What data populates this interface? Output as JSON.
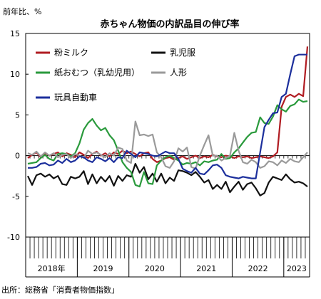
{
  "chart_data": {
    "type": "line",
    "title": "赤ちゃん物価の内訳品目の伸び率",
    "unit_label": "前年比、%",
    "source": "出所：総務省「消費者物価指数」",
    "ylim": [
      -10,
      15
    ],
    "yticks": [
      15,
      10,
      5,
      0,
      -5,
      -10
    ],
    "x_start": "2018-01",
    "x_end": "2023-06",
    "year_labels": [
      "2018年",
      "2019",
      "2020",
      "2021",
      "2022",
      "2023"
    ],
    "grid": false,
    "legend_placement": "top-left",
    "series": [
      {
        "name": "粉ミルク",
        "color": "#b01c22",
        "values": [
          -0.3,
          0.1,
          0.4,
          -0.2,
          0.3,
          0.0,
          0.2,
          0.4,
          -0.1,
          0.3,
          0.1,
          -0.2,
          0.4,
          0.1,
          -0.3,
          0.2,
          0.5,
          0.0,
          0.3,
          -0.1,
          0.4,
          0.2,
          0.6,
          0.3,
          0.5,
          0.2,
          -0.1,
          0.3,
          0.4,
          -0.4,
          -0.8,
          -0.6,
          -0.3,
          -0.2,
          -0.5,
          -0.3,
          -0.1,
          -0.4,
          -0.2,
          0.0,
          -0.3,
          -0.1,
          -0.2,
          0.1,
          -0.1,
          -0.2,
          0.0,
          -0.1,
          -0.3,
          -0.1,
          -0.2,
          -0.1,
          -0.3,
          -0.2,
          -0.1,
          -0.2,
          -0.3,
          -0.1,
          0.4,
          6.0,
          7.2,
          7.5,
          7.2,
          7.6,
          7.3,
          13.4
        ]
      },
      {
        "name": "乳児服",
        "color": "#111111",
        "values": [
          -2.5,
          -3.6,
          -2.4,
          -2.2,
          -2.6,
          -2.3,
          -2.8,
          -2.5,
          -3.5,
          -3.6,
          -2.6,
          -2.8,
          -2.6,
          -1.9,
          -3.5,
          -2.3,
          -3.4,
          -2.6,
          -3.2,
          -2.5,
          -3.7,
          -2.5,
          -3.1,
          -2.4,
          -2.6,
          -1.0,
          -2.1,
          -1.4,
          -2.9,
          -2.2,
          -3.2,
          -2.2,
          -3.4,
          -2.7,
          -3.1,
          -1.8,
          -1.9,
          -2.1,
          -2.4,
          -2.0,
          -2.6,
          -3.3,
          -3.0,
          -4.1,
          -3.6,
          -4.1,
          -3.2,
          -4.5,
          -3.8,
          -3.2,
          -4.2,
          -3.5,
          -3.3,
          -4.0,
          -4.9,
          -4.6,
          -3.3,
          -2.6,
          -2.8,
          -3.0,
          -2.3,
          -2.9,
          -3.3,
          -3.2,
          -3.4,
          -3.8
        ]
      },
      {
        "name": "紙おむつ（乳幼児用）",
        "color": "#2a9a3c",
        "values": [
          -1.0,
          -0.9,
          -0.8,
          -0.3,
          0.1,
          -0.4,
          -0.6,
          0.2,
          0.3,
          0.2,
          -0.1,
          0.3,
          1.5,
          3.2,
          4.0,
          4.5,
          3.7,
          3.1,
          3.4,
          2.5,
          1.9,
          0.6,
          -0.8,
          -1.5,
          -2.0,
          -3.6,
          -3.8,
          -2.0,
          -3.4,
          -3.5,
          -1.2,
          -0.6,
          -0.2,
          0.0,
          -0.3,
          -0.6,
          -1.1,
          -0.9,
          -1.0,
          -0.8,
          -1.2,
          -0.7,
          -0.8,
          -0.6,
          -0.5,
          0.2,
          -0.4,
          -0.3,
          0.4,
          0.9,
          1.6,
          2.3,
          2.8,
          2.9,
          4.7,
          4.0,
          3.9,
          4.8,
          6.2,
          5.7,
          5.4,
          6.1,
          6.3,
          6.9,
          6.6,
          6.7
        ]
      },
      {
        "name": "人形",
        "color": "#9a9a9a",
        "values": [
          0.3,
          0.1,
          0.5,
          -0.1,
          0.4,
          0.0,
          0.3,
          -0.2,
          0.1,
          0.2,
          -0.3,
          0.2,
          0.0,
          -0.3,
          0.6,
          0.2,
          0.4,
          0.1,
          -0.2,
          0.3,
          0.0,
          1.0,
          0.8,
          -0.6,
          -0.9,
          4.2,
          2.5,
          2.6,
          2.4,
          2.6,
          0.4,
          -0.2,
          -1.3,
          -1.5,
          -0.7,
          0.9,
          0.5,
          1.0,
          -1.4,
          -1.6,
          0.0,
          1.3,
          2.5,
          0.0,
          0.0,
          -0.6,
          -0.3,
          0.0,
          2.8,
          0.6,
          -0.8,
          -1.0,
          -0.5,
          -0.8,
          -1.5,
          -1.3,
          -0.7,
          -0.8,
          -1.2,
          -0.6,
          -0.9,
          -0.4,
          -0.7,
          -0.8,
          -0.2,
          0.4
        ]
      },
      {
        "name": "玩具自動車",
        "color": "#1c2f9c",
        "values": [
          -1.5,
          -1.5,
          -1.4,
          -1.0,
          -0.9,
          -1.2,
          -1.1,
          -0.6,
          -0.9,
          -0.4,
          -0.8,
          -0.6,
          -0.1,
          -0.2,
          -0.6,
          -0.8,
          -0.2,
          -0.4,
          -0.7,
          -0.3,
          -0.8,
          -0.2,
          -0.3,
          0.6,
          0.2,
          -0.2,
          0.4,
          0.3,
          0.2,
          0.0,
          -0.1,
          0.2,
          0.5,
          0.3,
          0.3,
          -0.4,
          -1.6,
          -1.9,
          -2.1,
          -1.5,
          -2.2,
          -2.3,
          -1.8,
          -1.2,
          -1.1,
          -1.5,
          -2.4,
          -2.6,
          -2.7,
          -2.8,
          -2.6,
          -2.7,
          -2.8,
          -2.8,
          0.4,
          3.5,
          4.4,
          5.2,
          5.3,
          7.2,
          7.6,
          10.0,
          12.2,
          12.4,
          12.4,
          12.4
        ]
      }
    ]
  }
}
